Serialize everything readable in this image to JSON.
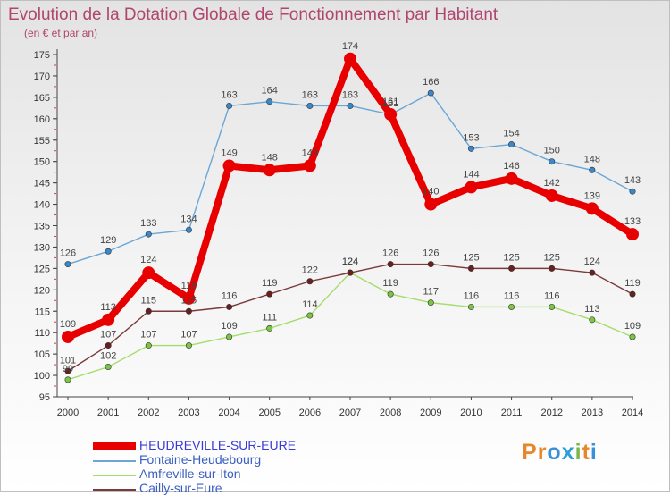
{
  "title": "Evolution de la Dotation Globale de Fonctionnement par Habitant",
  "subtitle": "(en € et par an)",
  "logo": {
    "text": "Proxiti",
    "colors": [
      "#e8862a",
      "#e8862a",
      "#3a8fd9",
      "#2b9fd8",
      "#7ab648",
      "#e8862a",
      "#3a8fd9"
    ]
  },
  "chart_data": {
    "type": "line",
    "x": [
      "2000",
      "2001",
      "2002",
      "2003",
      "2004",
      "2005",
      "2006",
      "2007",
      "2008",
      "2009",
      "2010",
      "2011",
      "2012",
      "2013",
      "2014"
    ],
    "ylim": [
      95,
      175
    ],
    "yticks": [
      95,
      100,
      105,
      110,
      115,
      120,
      125,
      130,
      135,
      140,
      145,
      150,
      155,
      160,
      165,
      170,
      175
    ],
    "grid": false,
    "legend_position": "bottom-left",
    "series": [
      {
        "name": "Fontaine-Heudebourg",
        "color": "#6aa6d6",
        "point_color": "#3a87c9",
        "values": [
          126,
          129,
          133,
          134,
          163,
          164,
          163,
          163,
          161,
          166,
          153,
          154,
          150,
          148,
          143
        ]
      },
      {
        "name": "Amfreville-sur-Iton",
        "color": "#a6dc6c",
        "point_color": "#7cc544",
        "values": [
          99,
          102,
          107,
          107,
          109,
          111,
          114,
          124,
          119,
          117,
          116,
          116,
          116,
          113,
          109
        ]
      },
      {
        "name": "Cailly-sur-Eure",
        "color": "#7a3a3a",
        "point_color": "#6b1f1f",
        "values": [
          101,
          107,
          115,
          115,
          116,
          119,
          122,
          124,
          126,
          126,
          125,
          125,
          125,
          124,
          119
        ]
      },
      {
        "name": "HEUDREVILLE-SUR-EURE",
        "color": "#e80000",
        "point_color": "#e80000",
        "highlight": true,
        "values": [
          109,
          113,
          124,
          118,
          149,
          148,
          149,
          174,
          161,
          140,
          144,
          146,
          142,
          139,
          133
        ]
      }
    ]
  }
}
